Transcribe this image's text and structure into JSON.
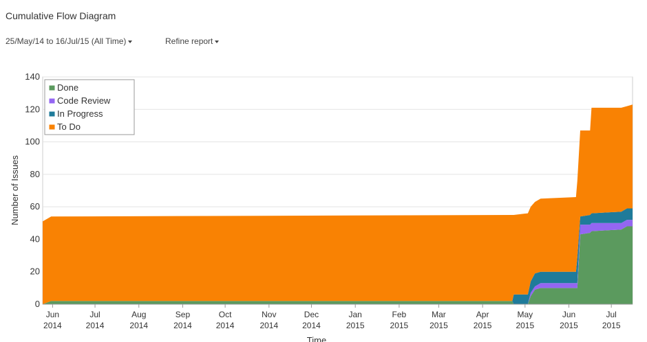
{
  "header": {
    "title": "Cumulative Flow Diagram",
    "range": "25/May/14 to 16/Jul/15 (All Time)",
    "refine": "Refine report"
  },
  "chart_data": {
    "type": "stacked-area",
    "x_label": "Time",
    "y_label": "Number of Issues",
    "x": [
      "2014-05-25",
      "2014-05-31",
      "2015-04-22",
      "2015-04-23",
      "2015-05-03",
      "2015-05-05",
      "2015-05-08",
      "2015-05-12",
      "2015-06-06",
      "2015-06-07",
      "2015-06-09",
      "2015-06-16",
      "2015-06-17",
      "2015-07-08",
      "2015-07-12",
      "2015-07-16"
    ],
    "series": [
      {
        "name": "Done",
        "color": "#5b9a5e",
        "values": [
          0,
          2,
          2,
          0,
          0,
          5,
          9,
          10,
          10,
          10,
          43,
          44,
          45,
          46,
          48,
          48
        ]
      },
      {
        "name": "Code Review",
        "color": "#9466f2",
        "values": [
          0,
          0,
          0,
          0,
          0,
          2,
          2,
          3,
          3,
          3,
          6,
          5,
          5,
          4,
          4,
          4
        ]
      },
      {
        "name": "In Progress",
        "color": "#1f7b9a",
        "values": [
          0,
          0,
          0,
          6,
          6,
          7,
          8,
          7,
          7,
          16,
          5,
          6,
          6,
          7,
          7,
          7
        ]
      },
      {
        "name": "To Do",
        "color": "#f98203",
        "values": [
          51,
          52,
          53,
          49,
          50,
          46,
          44,
          45,
          46,
          47,
          53,
          52,
          65,
          64,
          63,
          64
        ]
      }
    ],
    "xlim": [
      "2014-05-25",
      "2015-07-16"
    ],
    "xticks": [
      {
        "value": "2014-06-01",
        "label": "Jun 2014"
      },
      {
        "value": "2014-07-01",
        "label": "Jul 2014"
      },
      {
        "value": "2014-08-01",
        "label": "Aug 2014"
      },
      {
        "value": "2014-09-01",
        "label": "Sep 2014"
      },
      {
        "value": "2014-10-01",
        "label": "Oct 2014"
      },
      {
        "value": "2014-11-01",
        "label": "Nov 2014"
      },
      {
        "value": "2014-12-01",
        "label": "Dec 2014"
      },
      {
        "value": "2015-01-01",
        "label": "Jan 2015"
      },
      {
        "value": "2015-02-01",
        "label": "Feb 2015"
      },
      {
        "value": "2015-03-01",
        "label": "Mar 2015"
      },
      {
        "value": "2015-04-01",
        "label": "Apr 2015"
      },
      {
        "value": "2015-05-01",
        "label": "May 2015"
      },
      {
        "value": "2015-06-01",
        "label": "Jun 2015"
      },
      {
        "value": "2015-07-01",
        "label": "Jul 2015"
      }
    ],
    "ylim": [
      0,
      140
    ],
    "yticks": [
      0,
      20,
      40,
      60,
      80,
      100,
      120,
      140
    ],
    "grid": true,
    "legend": "top-left"
  }
}
